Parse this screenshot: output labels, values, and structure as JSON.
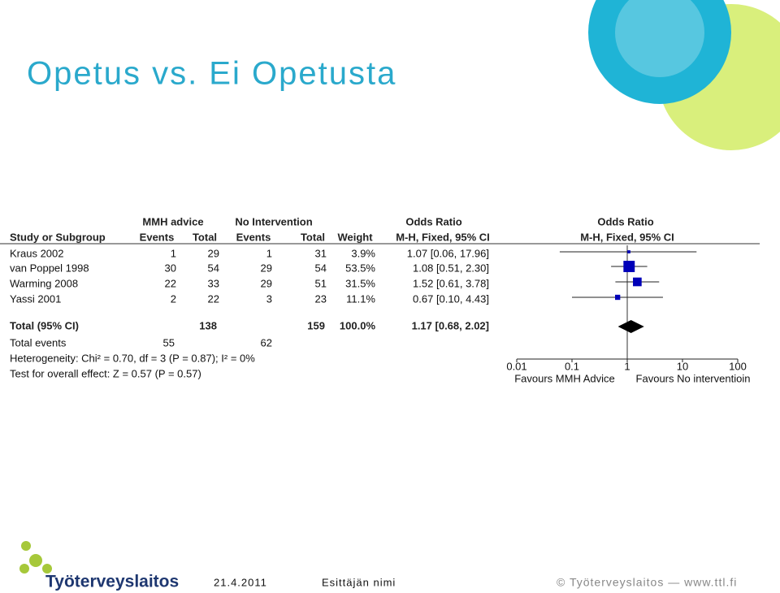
{
  "title": "Opetus vs. Ei Opetusta",
  "footer": {
    "logo": "Työterveyslaitos",
    "date": "21.4.2011",
    "presenter": "Esittäjän nimi",
    "copyright": "© Työterveyslaitos  —  www.ttl.fi"
  },
  "chart_data": {
    "type": "forest",
    "group_headers": [
      "MMH advice",
      "No Intervention",
      "Odds Ratio",
      "Odds Ratio"
    ],
    "column_headers": [
      "Study or Subgroup",
      "Events",
      "Total",
      "Events",
      "Total",
      "Weight",
      "M-H, Fixed, 95% CI",
      "M-H, Fixed, 95% CI"
    ],
    "studies": [
      {
        "name": "Kraus 2002",
        "events1": 1,
        "total1": 29,
        "events2": 1,
        "total2": 31,
        "weight": 3.9,
        "weight_label": "3.9%",
        "or": 1.07,
        "lower": 0.06,
        "upper": 17.96,
        "ci_label": "1.07 [0.06, 17.96]"
      },
      {
        "name": "van Poppel 1998",
        "events1": 30,
        "total1": 54,
        "events2": 29,
        "total2": 54,
        "weight": 53.5,
        "weight_label": "53.5%",
        "or": 1.08,
        "lower": 0.51,
        "upper": 2.3,
        "ci_label": "1.08 [0.51, 2.30]"
      },
      {
        "name": "Warming 2008",
        "events1": 22,
        "total1": 33,
        "events2": 29,
        "total2": 51,
        "weight": 31.5,
        "weight_label": "31.5%",
        "or": 1.52,
        "lower": 0.61,
        "upper": 3.78,
        "ci_label": "1.52 [0.61, 3.78]"
      },
      {
        "name": "Yassi 2001",
        "events1": 2,
        "total1": 22,
        "events2": 3,
        "total2": 23,
        "weight": 11.1,
        "weight_label": "11.1%",
        "or": 0.67,
        "lower": 0.1,
        "upper": 4.43,
        "ci_label": "0.67 [0.10, 4.43]"
      }
    ],
    "total": {
      "name": "Total (95% CI)",
      "total1": 138,
      "total2": 159,
      "weight": 100.0,
      "weight_label": "100.0%",
      "or": 1.17,
      "lower": 0.68,
      "upper": 2.02,
      "ci_label": "1.17 [0.68, 2.02]"
    },
    "total_events": {
      "name": "Total events",
      "events1": 55,
      "events2": 62
    },
    "heterogeneity": "Heterogeneity: Chi² = 0.70, df = 3 (P = 0.87); I² = 0%",
    "overall_effect": "Test for overall effect: Z = 0.57 (P = 0.57)",
    "log_scale": true,
    "xlim": [
      0.01,
      100
    ],
    "xticks": [
      0.01,
      0.1,
      1,
      10,
      100
    ],
    "x_label_left": "Favours MMH Advice",
    "x_label_right": "Favours No interventioin",
    "color": "#0000b8"
  }
}
